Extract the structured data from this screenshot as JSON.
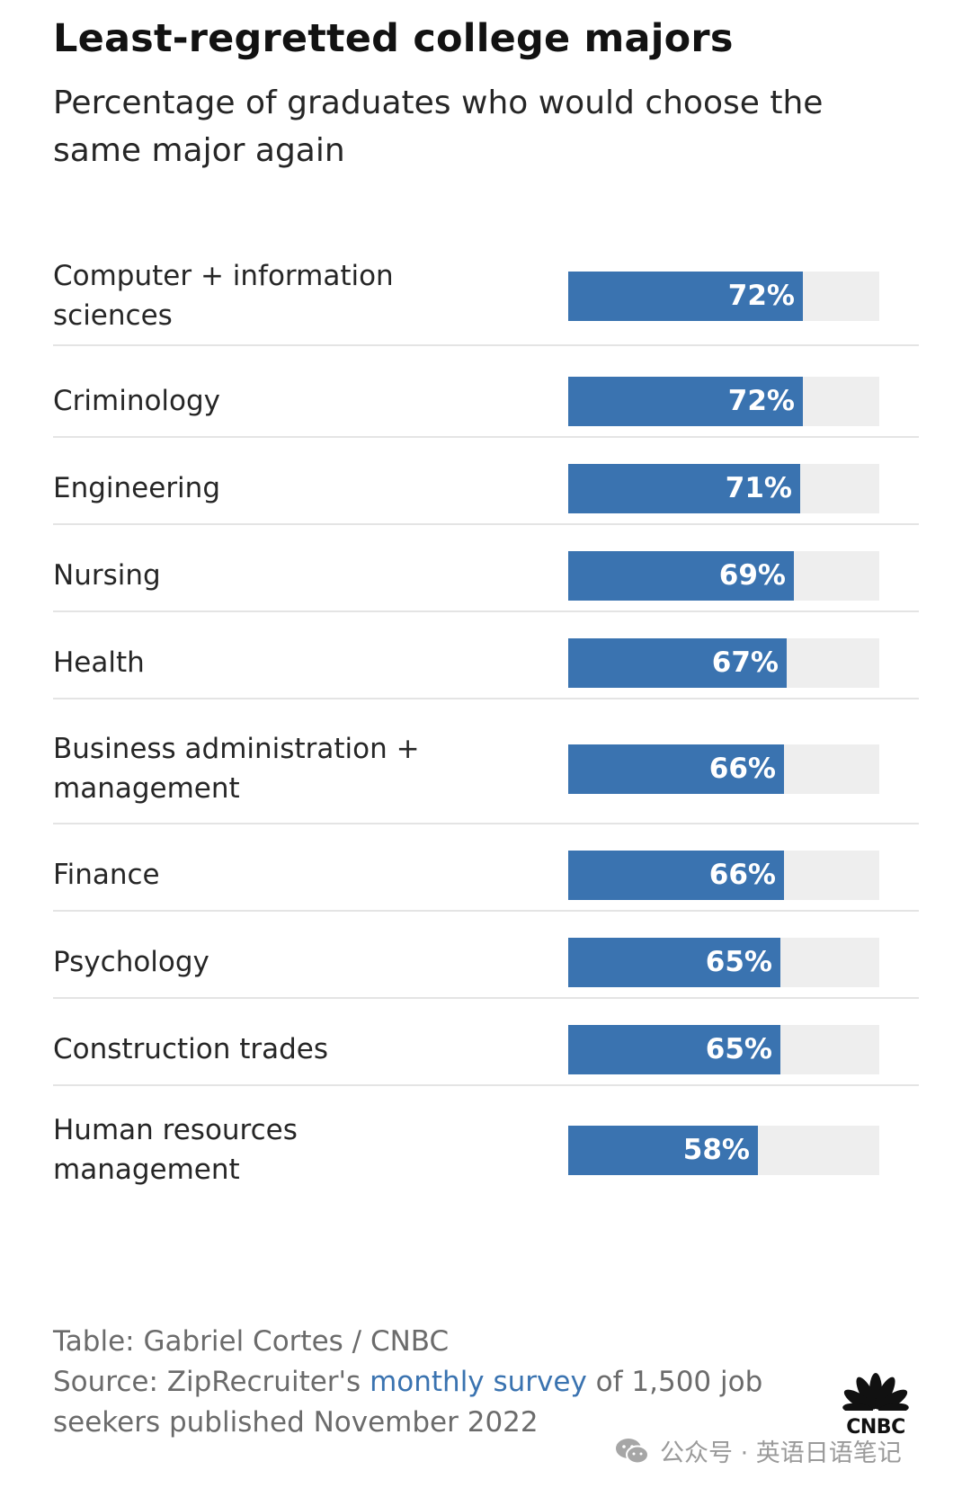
{
  "title": "Least-regretted college majors",
  "subtitle": "Percentage of graduates who would choose the same major again",
  "chart_data": {
    "type": "bar",
    "orientation": "horizontal",
    "categories": [
      "Computer + information sciences",
      "Criminology",
      "Engineering",
      "Nursing",
      "Health",
      "Business administration + management",
      "Finance",
      "Psychology",
      "Construction trades",
      "Human resources management"
    ],
    "values": [
      72,
      72,
      71,
      69,
      67,
      66,
      66,
      65,
      65,
      58
    ],
    "value_labels": [
      "72%",
      "72%",
      "71%",
      "69%",
      "67%",
      "66%",
      "66%",
      "65%",
      "65%",
      "58%"
    ],
    "xlim": [
      0,
      100
    ],
    "bar_color": "#3a73b0",
    "track_color": "#eeeeee"
  },
  "footer": {
    "credit": "Table: Gabriel Cortes / CNBC",
    "source_prefix": "Source: ZipRecruiter's ",
    "source_link": "monthly survey",
    "source_suffix": " of 1,500 job",
    "source_line2": "seekers published November 2022"
  },
  "logo": {
    "text": "CNBC",
    "icon": "cnbc-peacock-icon"
  },
  "watermark": {
    "text": "公众号 · 英语日语笔记",
    "icon": "wechat-icon"
  }
}
